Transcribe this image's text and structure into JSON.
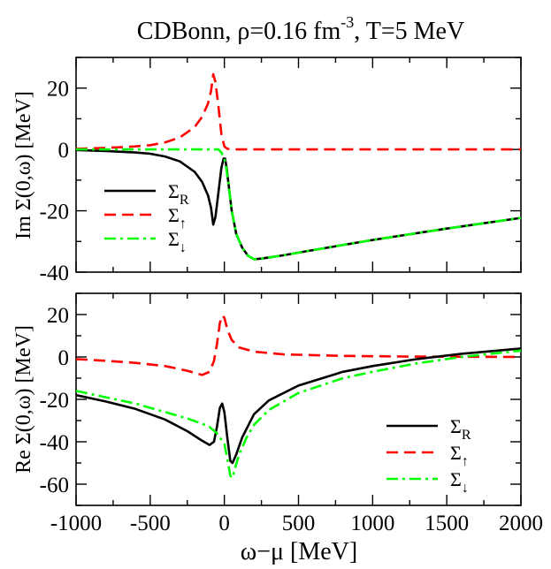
{
  "figure": {
    "title_pre": "CDBonn, ρ=0.16 fm",
    "title_sup": "-3",
    "title_post": ", T=5 MeV",
    "xlabel": "ω−μ [MeV]",
    "x_ticks": [
      "-1000",
      "-500",
      "0",
      "500",
      "1000",
      "1500",
      "2000"
    ],
    "top_y_ticks": [
      "20",
      "0",
      "-20",
      "-40"
    ],
    "bottom_y_ticks": [
      "20",
      "0",
      "-20",
      "-40",
      "-60"
    ]
  },
  "colors": {
    "black": "#000000",
    "red": "#ff0000",
    "green": "#00ff00"
  },
  "chart_data": [
    {
      "type": "line",
      "title": "CDBonn, ρ=0.16 fm^-3, T=5 MeV",
      "xlabel": "ω−μ [MeV]",
      "ylabel": "Im Σ(0,ω) [MeV]",
      "xlim": [
        -1000,
        2000
      ],
      "ylim": [
        -40,
        30
      ],
      "legend_position": "left",
      "series": [
        {
          "name": "Σ_R",
          "legend_main": "Σ",
          "legend_sub": "R",
          "color": "#000000",
          "dash": "solid",
          "points": [
            [
              -1000,
              -0.2
            ],
            [
              -800,
              -0.5
            ],
            [
              -600,
              -1
            ],
            [
              -500,
              -1.4
            ],
            [
              -400,
              -2.3
            ],
            [
              -300,
              -3.9
            ],
            [
              -200,
              -7.3
            ],
            [
              -150,
              -10.6
            ],
            [
              -110,
              -15
            ],
            [
              -90,
              -19
            ],
            [
              -75,
              -24.5
            ],
            [
              -60,
              -22
            ],
            [
              -40,
              -14
            ],
            [
              -20,
              -6
            ],
            [
              -5,
              -3
            ],
            [
              5,
              -3
            ],
            [
              15,
              -6
            ],
            [
              30,
              -12
            ],
            [
              50,
              -20
            ],
            [
              80,
              -27.5
            ],
            [
              120,
              -32
            ],
            [
              160,
              -34.7
            ],
            [
              200,
              -35.8
            ],
            [
              250,
              -35.6
            ],
            [
              400,
              -34.5
            ],
            [
              600,
              -32.8
            ],
            [
              1000,
              -29.5
            ],
            [
              1500,
              -25.8
            ],
            [
              2000,
              -22.3
            ]
          ]
        },
        {
          "name": "Σ_↑",
          "legend_main": "Σ",
          "legend_sub": "↑",
          "color": "#ff0000",
          "dash": "dashed",
          "points": [
            [
              -1000,
              0.2
            ],
            [
              -800,
              0.5
            ],
            [
              -600,
              1
            ],
            [
              -500,
              1.4
            ],
            [
              -400,
              2.3
            ],
            [
              -300,
              3.9
            ],
            [
              -200,
              7.3
            ],
            [
              -150,
              10.6
            ],
            [
              -110,
              15
            ],
            [
              -90,
              19
            ],
            [
              -75,
              24.5
            ],
            [
              -60,
              22
            ],
            [
              -40,
              14
            ],
            [
              -20,
              5
            ],
            [
              0,
              1
            ],
            [
              20,
              0.2
            ],
            [
              50,
              0
            ],
            [
              2000,
              0
            ]
          ]
        },
        {
          "name": "Σ_↓",
          "legend_main": "Σ",
          "legend_sub": "↓",
          "color": "#00ff00",
          "dash": "dashdot",
          "points": [
            [
              -1000,
              0
            ],
            [
              -40,
              0
            ],
            [
              -20,
              -1
            ],
            [
              0,
              -3
            ],
            [
              10,
              -5
            ],
            [
              30,
              -12
            ],
            [
              50,
              -20
            ],
            [
              80,
              -27.5
            ],
            [
              120,
              -32
            ],
            [
              160,
              -34.7
            ],
            [
              200,
              -35.8
            ],
            [
              250,
              -35.6
            ],
            [
              400,
              -34.5
            ],
            [
              600,
              -32.8
            ],
            [
              1000,
              -29.5
            ],
            [
              1500,
              -25.8
            ],
            [
              2000,
              -22.3
            ]
          ]
        }
      ]
    },
    {
      "type": "line",
      "xlabel": "ω−μ [MeV]",
      "ylabel": "Re Σ(0,ω) [MeV]",
      "xlim": [
        -1000,
        2000
      ],
      "ylim": [
        -70,
        30
      ],
      "legend_position": "bottom-right",
      "series": [
        {
          "name": "Σ_R",
          "legend_main": "Σ",
          "legend_sub": "R",
          "color": "#000000",
          "dash": "solid",
          "points": [
            [
              -1000,
              -18
            ],
            [
              -800,
              -21
            ],
            [
              -600,
              -24.5
            ],
            [
              -400,
              -29.5
            ],
            [
              -250,
              -35
            ],
            [
              -150,
              -39.5
            ],
            [
              -100,
              -41.5
            ],
            [
              -70,
              -40
            ],
            [
              -50,
              -33
            ],
            [
              -30,
              -24
            ],
            [
              -15,
              -22
            ],
            [
              0,
              -26
            ],
            [
              20,
              -38
            ],
            [
              40,
              -49
            ],
            [
              55,
              -50
            ],
            [
              80,
              -46
            ],
            [
              120,
              -38
            ],
            [
              200,
              -27
            ],
            [
              300,
              -20.5
            ],
            [
              500,
              -13.5
            ],
            [
              800,
              -7
            ],
            [
              1000,
              -4.3
            ],
            [
              1300,
              -1
            ],
            [
              1600,
              1.5
            ],
            [
              2000,
              4
            ]
          ]
        },
        {
          "name": "Σ_↑",
          "legend_main": "Σ",
          "legend_sub": "↑",
          "color": "#ff0000",
          "dash": "dashed",
          "points": [
            [
              -1000,
              -1
            ],
            [
              -800,
              -1.8
            ],
            [
              -600,
              -2.8
            ],
            [
              -400,
              -4.3
            ],
            [
              -250,
              -6.5
            ],
            [
              -150,
              -8.5
            ],
            [
              -100,
              -7
            ],
            [
              -70,
              -2
            ],
            [
              -50,
              6
            ],
            [
              -30,
              16
            ],
            [
              -15,
              19.5
            ],
            [
              0,
              18.5
            ],
            [
              20,
              13
            ],
            [
              50,
              8
            ],
            [
              100,
              4.5
            ],
            [
              200,
              2.5
            ],
            [
              400,
              1.2
            ],
            [
              800,
              0.5
            ],
            [
              1200,
              0.2
            ],
            [
              2000,
              0
            ]
          ]
        },
        {
          "name": "Σ_↓",
          "legend_main": "Σ",
          "legend_sub": "↓",
          "color": "#00ff00",
          "dash": "dashdot",
          "points": [
            [
              -1000,
              -16
            ],
            [
              -800,
              -19
            ],
            [
              -600,
              -22
            ],
            [
              -400,
              -26
            ],
            [
              -250,
              -29
            ],
            [
              -150,
              -31.5
            ],
            [
              -100,
              -33
            ],
            [
              -50,
              -36
            ],
            [
              0,
              -41
            ],
            [
              20,
              -48
            ],
            [
              40,
              -56
            ],
            [
              55,
              -57
            ],
            [
              70,
              -53
            ],
            [
              100,
              -46
            ],
            [
              150,
              -38
            ],
            [
              200,
              -32
            ],
            [
              300,
              -25
            ],
            [
              500,
              -17
            ],
            [
              800,
              -10
            ],
            [
              1000,
              -7
            ],
            [
              1300,
              -3
            ],
            [
              1600,
              0
            ],
            [
              2000,
              3
            ]
          ]
        }
      ]
    }
  ]
}
